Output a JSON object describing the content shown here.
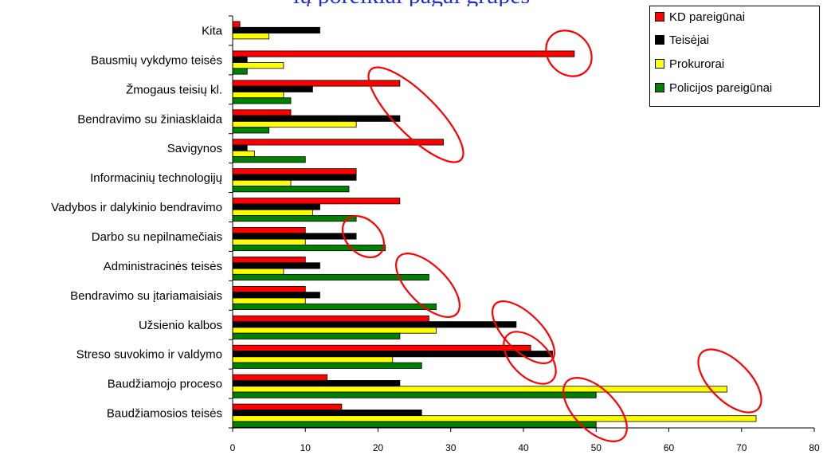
{
  "chart_data": {
    "type": "bar",
    "orientation": "horizontal",
    "title": "",
    "xlabel": "",
    "ylabel": "",
    "xlim": [
      0,
      80
    ],
    "x_ticks": [
      0,
      10,
      20,
      30,
      40,
      50,
      60,
      70,
      80
    ],
    "grid": false,
    "legend_position": "top-right",
    "categories": [
      "Kita",
      "Bausmių vykdymo teisės",
      "Žmogaus teisių kl.",
      "Bendravimo su žiniasklaida",
      "Savigynos",
      "Informacinių technologijų",
      "Vadybos ir dalykinio bendravimo",
      "Darbo su nepilnamečiais",
      "Administracinės teisės",
      "Bendravimo su įtariamaisiais",
      "Užsienio kalbos",
      "Streso suvokimo ir valdymo",
      "Baudžiamojo proceso",
      "Baudžiamosios teisės"
    ],
    "series": [
      {
        "name": "KD pareigūnai",
        "color": "#ff0000",
        "values": [
          1,
          47,
          23,
          8,
          29,
          17,
          23,
          10,
          10,
          10,
          27,
          41,
          13,
          15
        ]
      },
      {
        "name": "Teisėjai",
        "color": "#000000",
        "values": [
          12,
          2,
          11,
          23,
          2,
          17,
          12,
          17,
          12,
          12,
          39,
          44,
          23,
          26
        ]
      },
      {
        "name": "Prokurorai",
        "color": "#ffff00",
        "values": [
          5,
          7,
          7,
          17,
          3,
          8,
          11,
          10,
          7,
          10,
          28,
          22,
          68,
          72
        ]
      },
      {
        "name": "Policijos pareigūnai",
        "color": "#008000",
        "values": [
          0,
          2,
          8,
          5,
          10,
          16,
          17,
          21,
          27,
          28,
          23,
          26,
          50,
          50
        ]
      }
    ],
    "annotation_color": "#ff0000"
  },
  "partial_title_text": "ių poreikiai pagal grupes"
}
